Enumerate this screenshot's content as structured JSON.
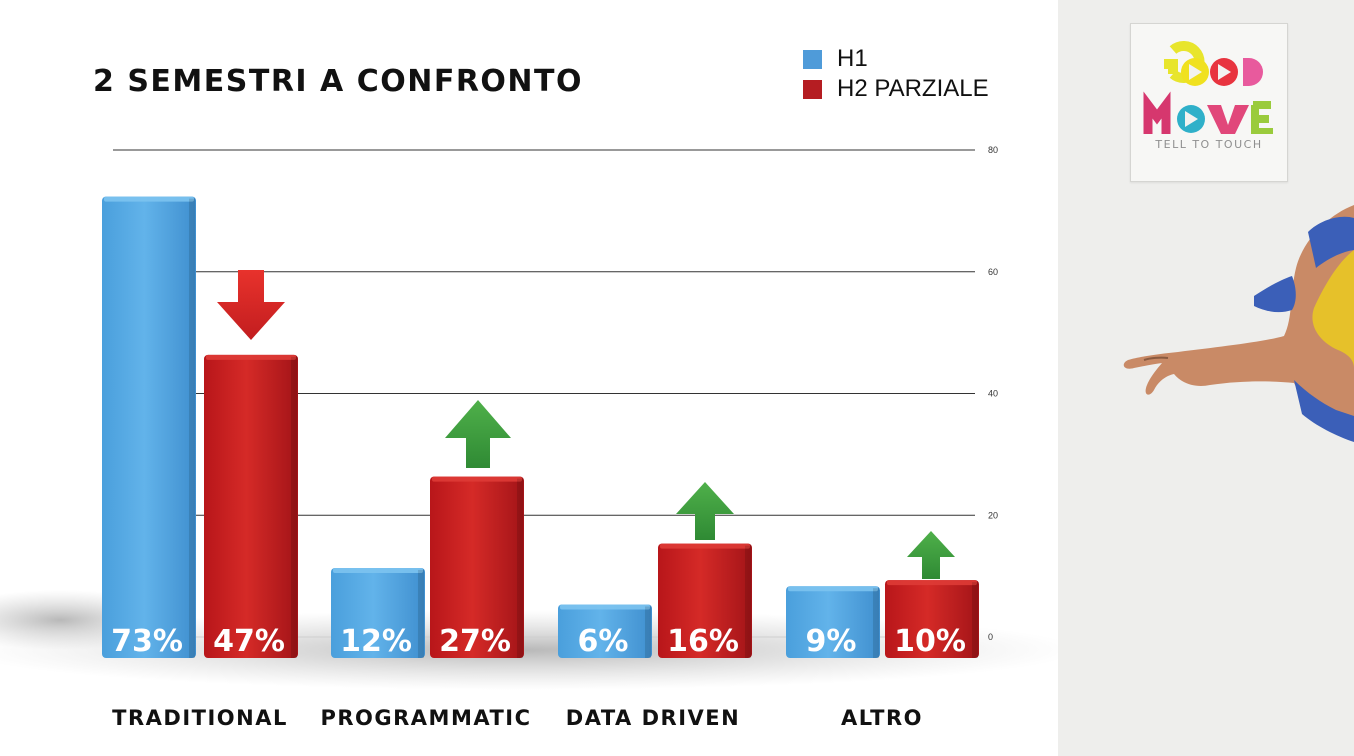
{
  "slide": {
    "title": "2 SEMESTRI A CONFRONTO"
  },
  "legend": [
    {
      "label": "H1",
      "color": "#4f9bd9"
    },
    {
      "label": "H2 PARZIALE",
      "color": "#b51d22"
    }
  ],
  "chart_data": {
    "type": "bar",
    "title": "2 SEMESTRI A CONFRONTO",
    "categories": [
      "TRADITIONAL",
      "PROGRAMMATIC",
      "DATA DRIVEN",
      "ALTRO"
    ],
    "series": [
      {
        "name": "H1",
        "values": [
          73,
          12,
          6,
          9
        ],
        "labels": [
          "73%",
          "12%",
          "6%",
          "9%"
        ],
        "color": "#5aaee6"
      },
      {
        "name": "H2 PARZIALE",
        "values": [
          47,
          27,
          16,
          10
        ],
        "labels": [
          "47%",
          "27%",
          "16%",
          "10%"
        ],
        "color": "#c8201f"
      }
    ],
    "yticks": [
      80,
      60,
      40,
      20,
      0
    ],
    "ylim": [
      0,
      80
    ],
    "grid": true,
    "legend_position": "top-right",
    "trend_arrows": [
      "down",
      "up",
      "up",
      "up"
    ]
  },
  "brand": {
    "logo_line1": "GOOD",
    "logo_line2": "MOVE",
    "tagline": "TELL TO TOUCH"
  }
}
